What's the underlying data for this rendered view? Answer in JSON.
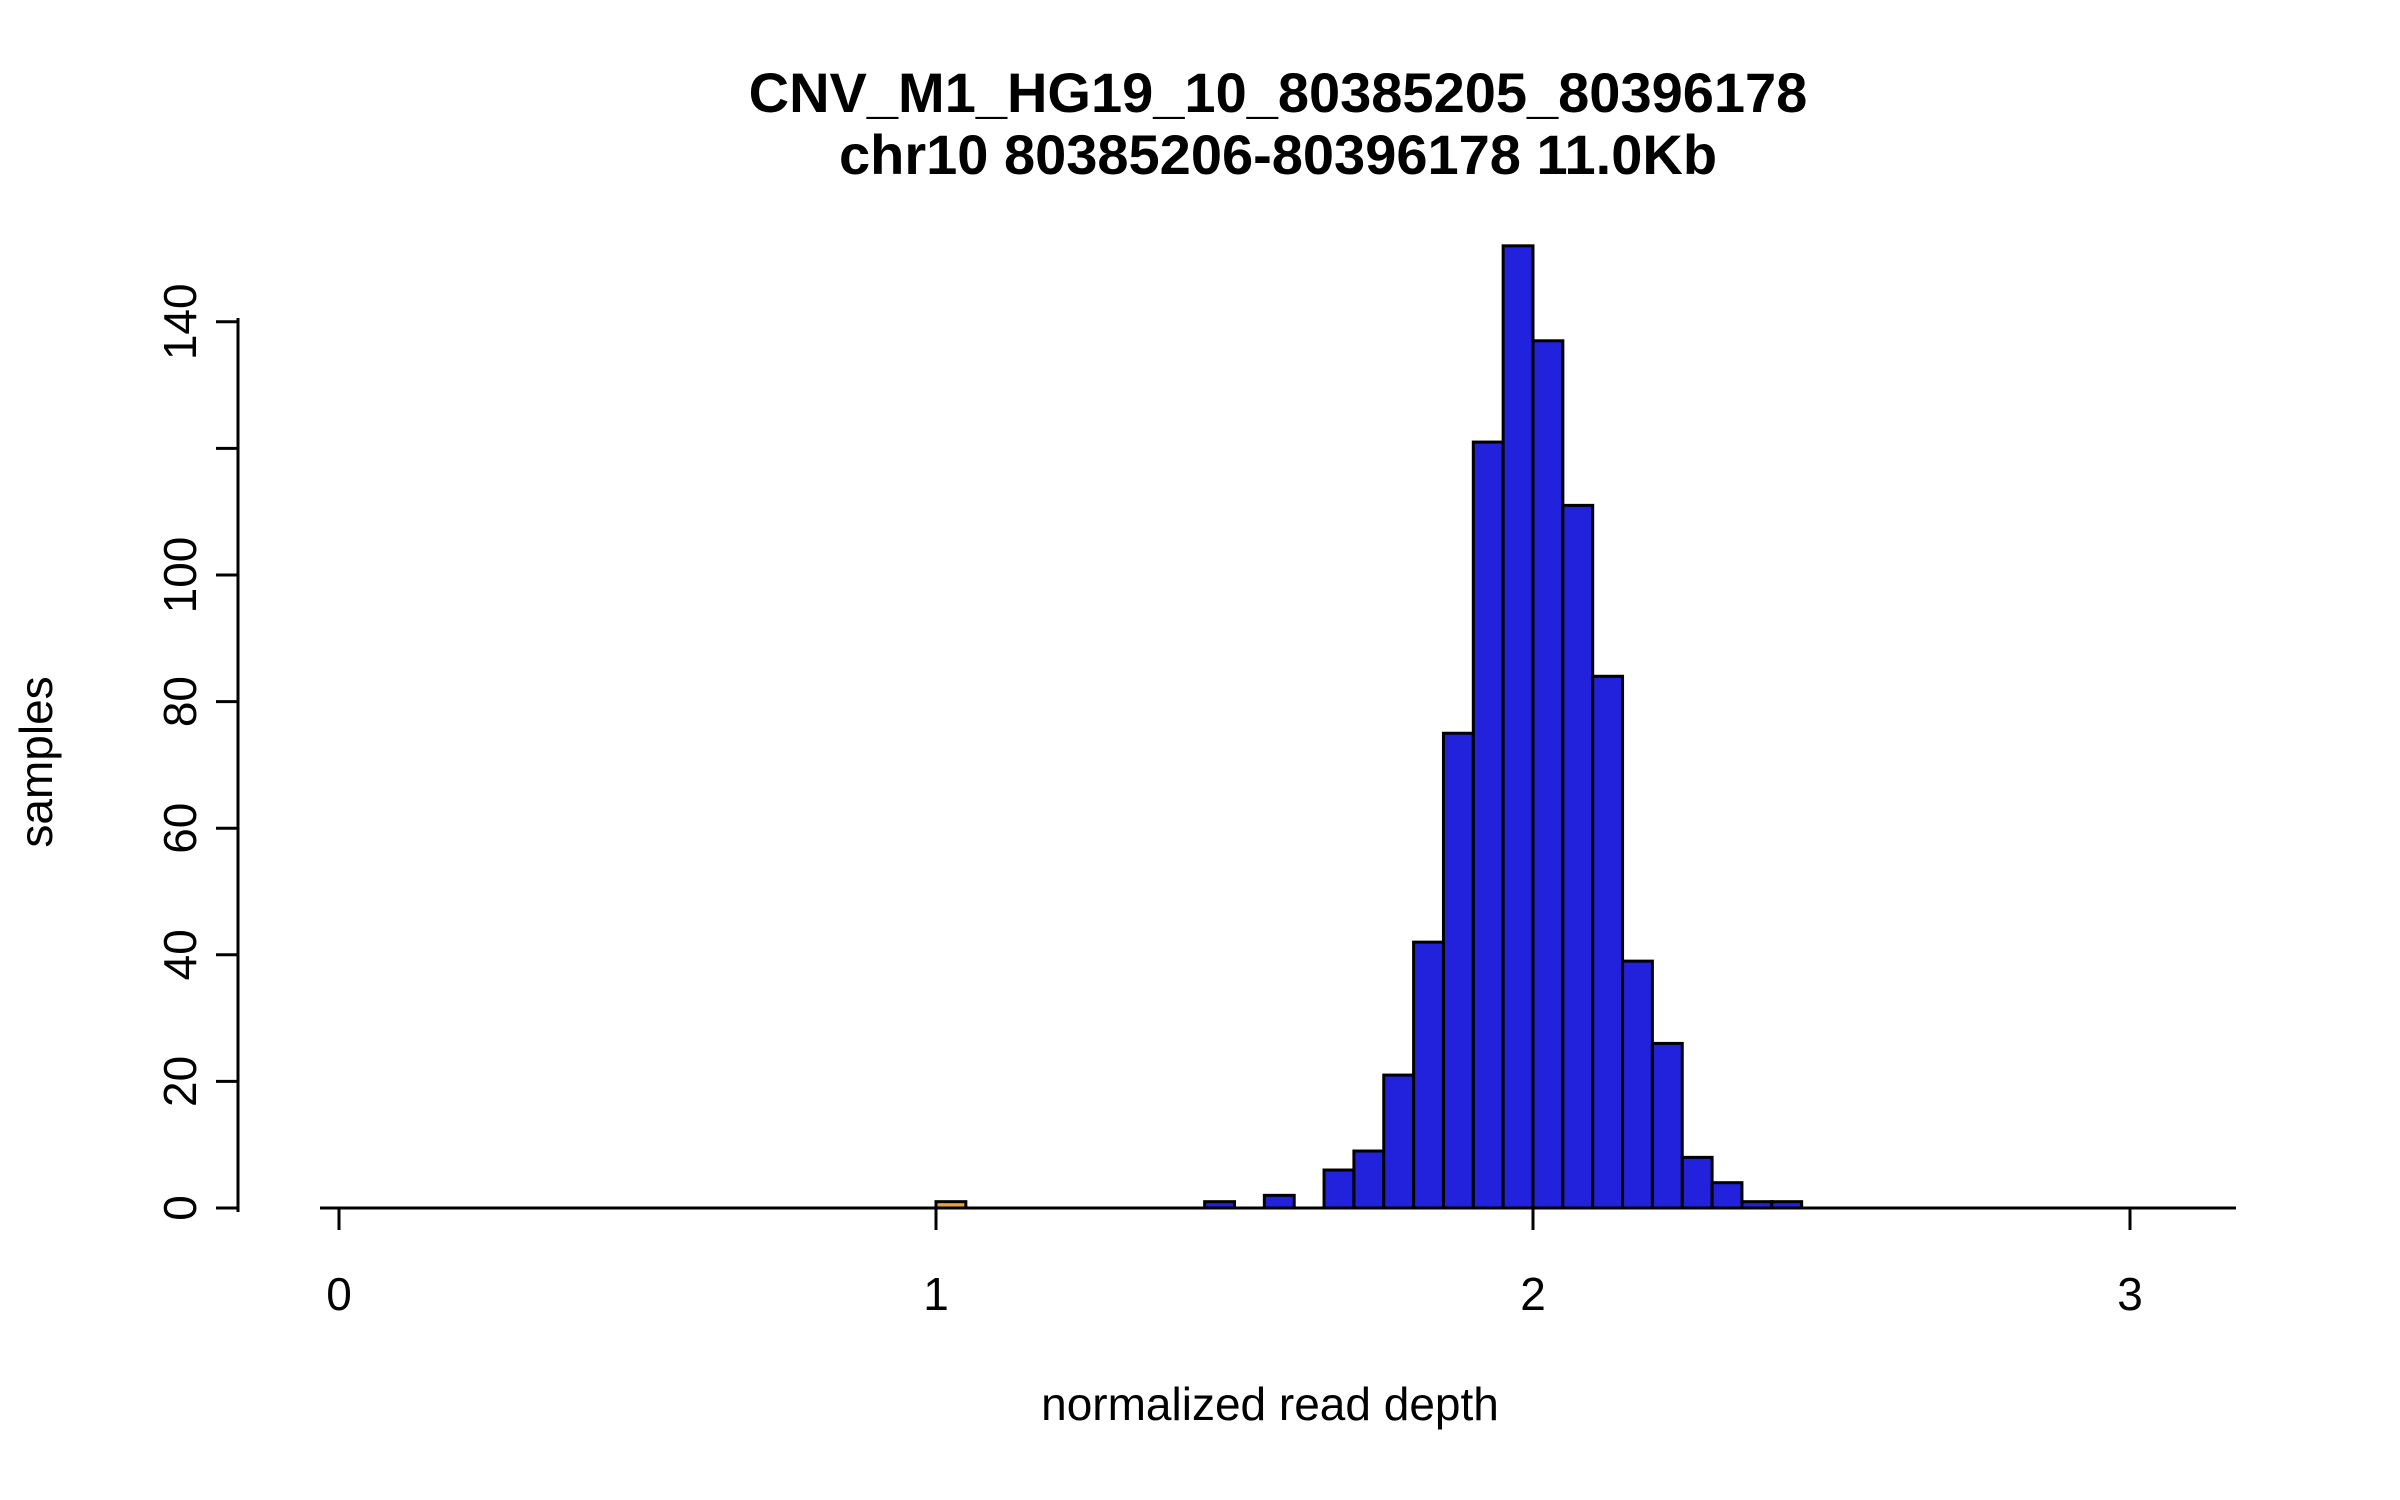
{
  "page": {
    "background": "#ffffff"
  },
  "chart_data": {
    "type": "bar",
    "subtype": "histogram",
    "title": "CNV_M1_HG19_10_80385205_80396178",
    "subtitle": "chr10 80385206-80396178 11.0Kb",
    "xlabel": "normalized read depth",
    "ylabel": "samples",
    "bin_width": 0.05,
    "x_ticks": [
      0,
      1,
      2,
      3
    ],
    "x_tick_labels": [
      "0",
      "1",
      "2",
      "3"
    ],
    "y_ticks": [
      0,
      20,
      40,
      60,
      80,
      100,
      120,
      140
    ],
    "y_tick_labels": [
      "0",
      "20",
      "40",
      "60",
      "80",
      "100",
      "",
      "140"
    ],
    "xlim": [
      -0.03,
      3.18
    ],
    "ylim": [
      0,
      152
    ],
    "grid": false,
    "legend": "none",
    "bars": [
      {
        "x": 1.0,
        "count": 1,
        "color": "highlight"
      },
      {
        "x": 1.45,
        "count": 1
      },
      {
        "x": 1.55,
        "count": 2
      },
      {
        "x": 1.65,
        "count": 6
      },
      {
        "x": 1.7,
        "count": 9
      },
      {
        "x": 1.75,
        "count": 21
      },
      {
        "x": 1.8,
        "count": 42
      },
      {
        "x": 1.85,
        "count": 75
      },
      {
        "x": 1.9,
        "count": 121
      },
      {
        "x": 1.95,
        "count": 152
      },
      {
        "x": 2.0,
        "count": 137
      },
      {
        "x": 2.05,
        "count": 111
      },
      {
        "x": 2.1,
        "count": 84
      },
      {
        "x": 2.15,
        "count": 39
      },
      {
        "x": 2.2,
        "count": 26
      },
      {
        "x": 2.25,
        "count": 8
      },
      {
        "x": 2.3,
        "count": 4
      },
      {
        "x": 2.35,
        "count": 1
      },
      {
        "x": 2.4,
        "count": 1
      }
    ],
    "colors": {
      "bar_fill": "#2222DD",
      "highlight_fill": "#E8A33C",
      "stroke": "#000000",
      "axis": "#000000",
      "text": "#000000"
    }
  }
}
